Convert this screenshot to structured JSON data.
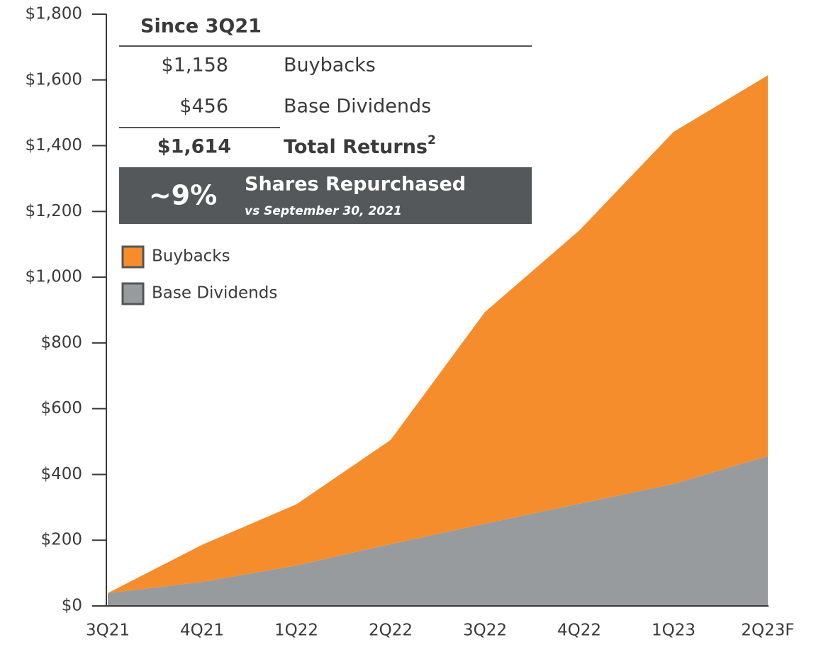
{
  "chart_data": {
    "type": "stacked_area",
    "categories": [
      "3Q21",
      "4Q21",
      "1Q22",
      "2Q22",
      "3Q22",
      "4Q22",
      "1Q23",
      "2Q23F"
    ],
    "series": [
      {
        "name": "Base Dividends",
        "color": "#979b9d",
        "values": [
          39,
          73,
          123,
          188,
          250,
          311,
          371,
          456
        ]
      },
      {
        "name": "Buybacks",
        "color": "#f58d2d",
        "values": [
          0,
          113,
          186,
          317,
          644,
          831,
          1071,
          1158
        ]
      }
    ],
    "ylim": [
      0,
      1800
    ],
    "yticks": [
      {
        "value": 0,
        "label": "$0"
      },
      {
        "value": 200,
        "label": "$200"
      },
      {
        "value": 400,
        "label": "$400"
      },
      {
        "value": 600,
        "label": "$600"
      },
      {
        "value": 800,
        "label": "$800"
      },
      {
        "value": 1000,
        "label": "$1,000"
      },
      {
        "value": 1200,
        "label": "$1,200"
      },
      {
        "value": 1400,
        "label": "$1,400"
      },
      {
        "value": 1600,
        "label": "$1,600"
      },
      {
        "value": 1800,
        "label": "$1,800"
      }
    ],
    "summary": {
      "title": "Since 3Q21",
      "rows": [
        [
          "$1,158",
          "Buybacks"
        ],
        [
          "$456",
          "Base Dividends"
        ]
      ],
      "total": [
        "$1,614",
        "Total Returns"
      ],
      "total_footnote": "2",
      "highlight": {
        "value": "~9%",
        "title": "Shares Repurchased",
        "subtitle": "vs September 30, 2021"
      }
    }
  }
}
